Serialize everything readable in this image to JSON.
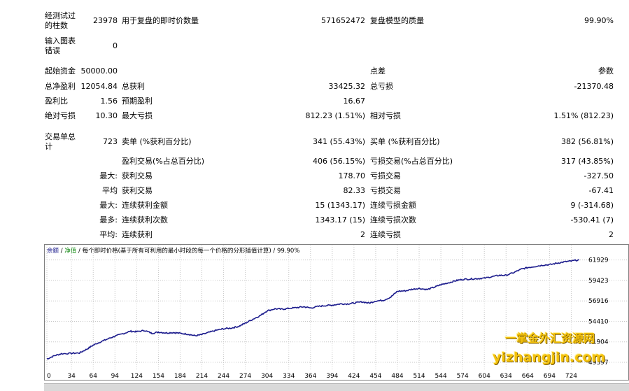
{
  "stats": {
    "bars_tested_label": "经测试过的柱数",
    "bars_tested_value": "23978",
    "ticks_label": "用于复盘的即时价数量",
    "ticks_value": "571652472",
    "quality_label": "复盘模型的质量",
    "quality_value": "99.90%",
    "chart_errors_label": "输入图表错误",
    "chart_errors_value": "0",
    "initial_deposit_label": "起始资金",
    "initial_deposit_value": "50000.00",
    "spread_label": "点差",
    "spread_value": "参数",
    "net_profit_label": "总净盈利",
    "net_profit_value": "12054.84",
    "gross_profit_label": "总获利",
    "gross_profit_value": "33425.32",
    "gross_loss_label": "总亏损",
    "gross_loss_value": "-21370.48",
    "profit_factor_label": "盈利比",
    "profit_factor_value": "1.56",
    "expected_payoff_label": "预期盈利",
    "expected_payoff_value": "16.67",
    "abs_drawdown_label": "绝对亏损",
    "abs_drawdown_value": "10.30",
    "max_drawdown_label": "最大亏损",
    "max_drawdown_value": "812.23 (1.51%)",
    "rel_drawdown_label": "相对亏损",
    "rel_drawdown_value": "1.51% (812.23)",
    "total_trades_label": "交易单总计",
    "total_trades_value": "723",
    "short_label": "卖单 (%获利百分比)",
    "short_value": "341 (55.43%)",
    "long_label": "买单 (%获利百分比)",
    "long_value": "382 (56.81%)",
    "profit_trades_label": "盈利交易(%占总百分比)",
    "profit_trades_value": "406 (56.15%)",
    "loss_trades_label": "亏损交易(%占总百分比)",
    "loss_trades_value": "317 (43.85%)",
    "largest_label": "最大:",
    "largest_profit_label": "获利交易",
    "largest_profit_value": "178.70",
    "largest_loss_label": "亏损交易",
    "largest_loss_value": "-327.50",
    "average_label": "平均",
    "average_profit_label": "获利交易",
    "average_profit_value": "82.33",
    "average_loss_label": "亏损交易",
    "average_loss_value": "-67.41",
    "max_cons_label": "最大:",
    "max_cons_wins_label": "连续获利金额",
    "max_cons_wins_value": "15 (1343.17)",
    "max_cons_losses_label": "连续亏损金额",
    "max_cons_losses_value": "9 (-314.68)",
    "most_label": "最多:",
    "max_cons_profit_label": "连续获利次数",
    "max_cons_profit_value": "1343.17 (15)",
    "max_cons_loss_label": "连续亏损次数",
    "max_cons_loss_value": "-530.41 (7)",
    "avg_cons_label": "平均:",
    "avg_cons_wins_label": "连续获利",
    "avg_cons_wins_value": "2",
    "avg_cons_losses_label": "连续亏损",
    "avg_cons_losses_value": "2"
  },
  "chart_header": {
    "balance": "余额",
    "sep1": " / ",
    "equity": "净值",
    "rest": " / 每个即时价格(基于所有可利用的最小时段的每一个价格的分形插值计算) / 99.90%"
  },
  "watermark": {
    "line1": "一掌金外汇资源网",
    "line2": "yizhangjin.com"
  },
  "colors": {
    "balance_line": "#1a1a8c",
    "grid": "#c8c8c8",
    "chart_border": "#808080",
    "watermark": "#f4c20d"
  },
  "chart_data": {
    "type": "line",
    "title": "",
    "xlabel": "",
    "ylabel": "",
    "x_ticks": [
      0,
      34,
      64,
      94,
      124,
      154,
      184,
      214,
      244,
      274,
      304,
      334,
      364,
      394,
      424,
      454,
      484,
      514,
      544,
      574,
      604,
      634,
      664,
      694,
      724
    ],
    "y_ticks": [
      49397,
      51904,
      54410,
      56916,
      59423,
      61929
    ],
    "xlim": [
      0,
      740
    ],
    "ylim": [
      48800,
      62500
    ],
    "grid": true,
    "series": [
      {
        "points": [
          [
            0,
            49800
          ],
          [
            10,
            50200
          ],
          [
            20,
            50450
          ],
          [
            34,
            50500
          ],
          [
            45,
            50550
          ],
          [
            55,
            51000
          ],
          [
            64,
            51500
          ],
          [
            74,
            51900
          ],
          [
            85,
            52300
          ],
          [
            94,
            52600
          ],
          [
            105,
            52900
          ],
          [
            115,
            53200
          ],
          [
            124,
            53150
          ],
          [
            135,
            53300
          ],
          [
            145,
            52950
          ],
          [
            154,
            53100
          ],
          [
            165,
            53000
          ],
          [
            175,
            53050
          ],
          [
            184,
            52950
          ],
          [
            195,
            52850
          ],
          [
            205,
            52650
          ],
          [
            214,
            52800
          ],
          [
            225,
            53100
          ],
          [
            235,
            53350
          ],
          [
            244,
            53500
          ],
          [
            255,
            53600
          ],
          [
            265,
            53800
          ],
          [
            274,
            54200
          ],
          [
            285,
            54700
          ],
          [
            295,
            55150
          ],
          [
            304,
            55700
          ],
          [
            315,
            55950
          ],
          [
            325,
            55900
          ],
          [
            334,
            56000
          ],
          [
            345,
            56100
          ],
          [
            355,
            56200
          ],
          [
            364,
            56050
          ],
          [
            375,
            56250
          ],
          [
            385,
            56350
          ],
          [
            394,
            56400
          ],
          [
            405,
            56550
          ],
          [
            415,
            56550
          ],
          [
            424,
            56650
          ],
          [
            435,
            56800
          ],
          [
            445,
            56650
          ],
          [
            454,
            56900
          ],
          [
            465,
            57000
          ],
          [
            475,
            57400
          ],
          [
            484,
            58100
          ],
          [
            495,
            58150
          ],
          [
            505,
            58350
          ],
          [
            514,
            58450
          ],
          [
            525,
            58300
          ],
          [
            535,
            58600
          ],
          [
            544,
            58900
          ],
          [
            555,
            59150
          ],
          [
            565,
            59400
          ],
          [
            574,
            59550
          ],
          [
            585,
            59600
          ],
          [
            595,
            59650
          ],
          [
            604,
            59700
          ],
          [
            615,
            59900
          ],
          [
            625,
            60050
          ],
          [
            634,
            60050
          ],
          [
            645,
            60400
          ],
          [
            655,
            60800
          ],
          [
            664,
            61000
          ],
          [
            675,
            61150
          ],
          [
            685,
            61300
          ],
          [
            694,
            61350
          ],
          [
            705,
            61550
          ],
          [
            715,
            61700
          ],
          [
            724,
            61800
          ],
          [
            735,
            61950
          ]
        ]
      }
    ]
  }
}
